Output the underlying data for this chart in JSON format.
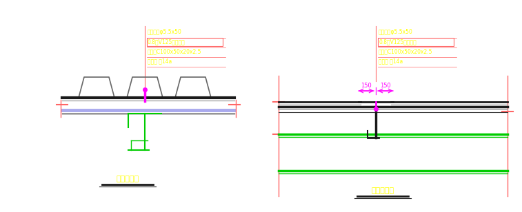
{
  "bg_color": "#ffffff",
  "fig_width": 7.57,
  "fig_height": 3.08,
  "dpi": 100,
  "left_ann": [
    {
      "text": "自攻螺丝φ5.5x50",
      "color": "#ffff00",
      "box": false
    },
    {
      "text": "0.8原V125彩钉压板",
      "color": "#ffff00",
      "box": true
    },
    {
      "text": "次樘条C100x50x20x2.5",
      "color": "#ffff00",
      "box": false
    },
    {
      "text": "主樘条 ㅀ14a",
      "color": "#ffff00",
      "box": false
    }
  ],
  "right_ann": [
    {
      "text": "自攻螺丝φ5.5x50",
      "color": "#ffff00",
      "box": false
    },
    {
      "text": "0.8原V125彩钉压板",
      "color": "#ffff00",
      "box": true
    },
    {
      "text": "次樘条C100x50x20x2.5",
      "color": "#ffff00",
      "box": false
    },
    {
      "text": "主樘条 ㅀ14a",
      "color": "#ffff00",
      "box": false
    }
  ],
  "left_label": "板横向搭接",
  "right_label": "板纵向搭接"
}
